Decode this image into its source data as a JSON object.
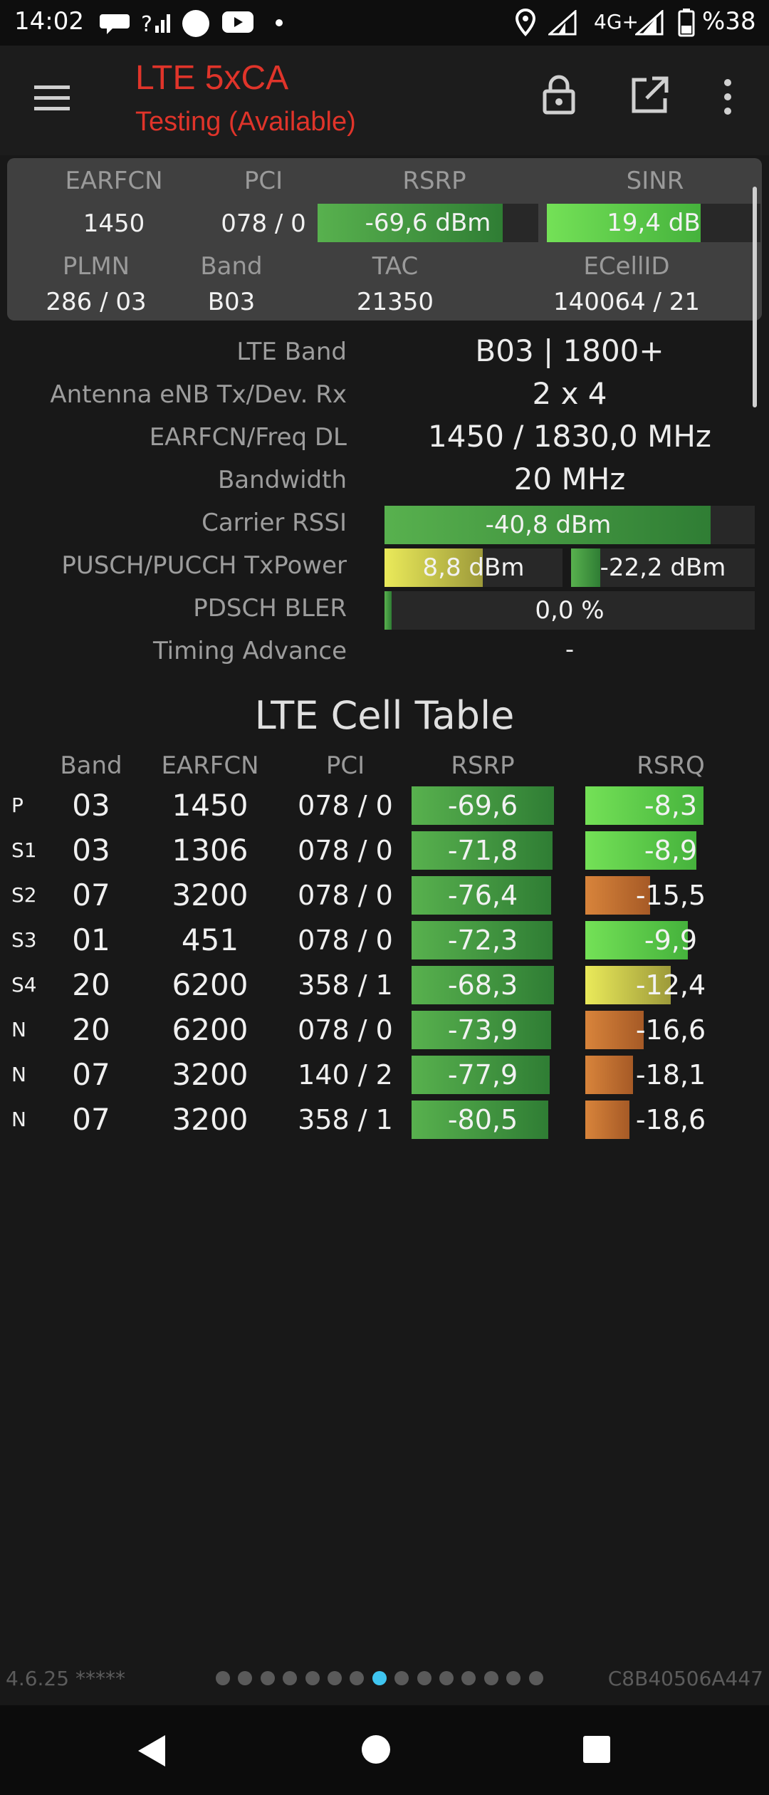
{
  "status": {
    "time": "14:02",
    "network": "4G+",
    "battery": "%38",
    "icons": [
      "chat-bubble-icon",
      "signal-unknown-icon",
      "circle-icon",
      "youtube-icon",
      "dot-icon",
      "location-icon",
      "signal-icon",
      "signal-icon",
      "battery-icon"
    ]
  },
  "app": {
    "title": "LTE 5xCA",
    "subtitle": "Testing (Available)",
    "icons": [
      "menu-icon",
      "lock-icon",
      "open-external-icon",
      "more-vert-icon"
    ]
  },
  "panel": {
    "labels": {
      "earfcn": "EARFCN",
      "pci": "PCI",
      "rsrp": "RSRP",
      "sinr": "SINR",
      "plmn": "PLMN",
      "band": "Band",
      "tac": "TAC",
      "ecellid": "ECellID"
    },
    "earfcn": "1450",
    "pci": "078 / 0",
    "rsrp": {
      "text": "-69,6 dBm",
      "level": 0.84
    },
    "sinr": {
      "text": "19,4 dB",
      "level": 0.72
    },
    "plmn": "286 / 03",
    "band": "B03",
    "tac": "21350",
    "ecellid": "140064 / 21"
  },
  "info": {
    "lte_band_label": "LTE Band",
    "lte_band": "B03 | 1800+",
    "antenna_label": "Antenna eNB Tx/Dev. Rx",
    "antenna": "2 x 4",
    "freq_label": "EARFCN/Freq DL",
    "freq": "1450 / 1830,0 MHz",
    "bandwidth_label": "Bandwidth",
    "bandwidth": "20 MHz",
    "rssi_label": "Carrier RSSI",
    "rssi": {
      "text": "-40,8 dBm",
      "level": 0.88
    },
    "txpower_label": "PUSCH/PUCCH TxPower",
    "pusch": {
      "text": "8,8 dBm",
      "level": 0.55
    },
    "pucch": {
      "text": "-22,2 dBm",
      "level": 0.16
    },
    "bler_label": "PDSCH BLER",
    "bler": {
      "text": "0,0 %",
      "level": 0.02
    },
    "ta_label": "Timing Advance",
    "ta": "-"
  },
  "table": {
    "title": "LTE Cell Table",
    "headers": {
      "band": "Band",
      "earfcn": "EARFCN",
      "pci": "PCI",
      "rsrp": "RSRP",
      "rsrq": "RSRQ"
    },
    "rows": [
      {
        "type": "P",
        "band": "03",
        "earfcn": "1450",
        "pci": "078 / 0",
        "rsrp": "-69,6",
        "rsrp_level": 1.0,
        "rsrq": "-8,3",
        "rsrq_level": 0.69,
        "rsrq_color": "bright"
      },
      {
        "type": "S1",
        "band": "03",
        "earfcn": "1306",
        "pci": "078 / 0",
        "rsrp": "-71,8",
        "rsrp_level": 0.99,
        "rsrq": "-8,9",
        "rsrq_level": 0.65,
        "rsrq_color": "bright"
      },
      {
        "type": "S2",
        "band": "07",
        "earfcn": "3200",
        "pci": "078 / 0",
        "rsrp": "-76,4",
        "rsrp_level": 0.98,
        "rsrq": "-15,5",
        "rsrq_level": 0.38,
        "rsrq_color": "orange"
      },
      {
        "type": "S3",
        "band": "01",
        "earfcn": "451",
        "pci": "078 / 0",
        "rsrp": "-72,3",
        "rsrp_level": 0.99,
        "rsrq": "-9,9",
        "rsrq_level": 0.6,
        "rsrq_color": "bright"
      },
      {
        "type": "S4",
        "band": "20",
        "earfcn": "6200",
        "pci": "358 / 1",
        "rsrp": "-68,3",
        "rsrp_level": 1.0,
        "rsrq": "-12,4",
        "rsrq_level": 0.5,
        "rsrq_color": "yellow"
      },
      {
        "type": "N",
        "band": "20",
        "earfcn": "6200",
        "pci": "078 / 0",
        "rsrp": "-73,9",
        "rsrp_level": 0.98,
        "rsrq": "-16,6",
        "rsrq_level": 0.34,
        "rsrq_color": "orange"
      },
      {
        "type": "N",
        "band": "07",
        "earfcn": "3200",
        "pci": "140 / 2",
        "rsrp": "-77,9",
        "rsrp_level": 0.97,
        "rsrq": "-18,1",
        "rsrq_level": 0.28,
        "rsrq_color": "orange"
      },
      {
        "type": "N",
        "band": "07",
        "earfcn": "3200",
        "pci": "358 / 1",
        "rsrp": "-80,5",
        "rsrp_level": 0.96,
        "rsrq": "-18,6",
        "rsrq_level": 0.26,
        "rsrq_color": "orange"
      }
    ]
  },
  "footer": {
    "version": "4.6.25 *****",
    "device_id": "C8B40506A447",
    "page_count": 15,
    "active_page": 8
  },
  "nav": {
    "icons": [
      "back-icon",
      "home-icon",
      "recents-icon"
    ]
  },
  "colors": {
    "accent": "#e0342a",
    "active_dot": "#3fc5f0"
  }
}
